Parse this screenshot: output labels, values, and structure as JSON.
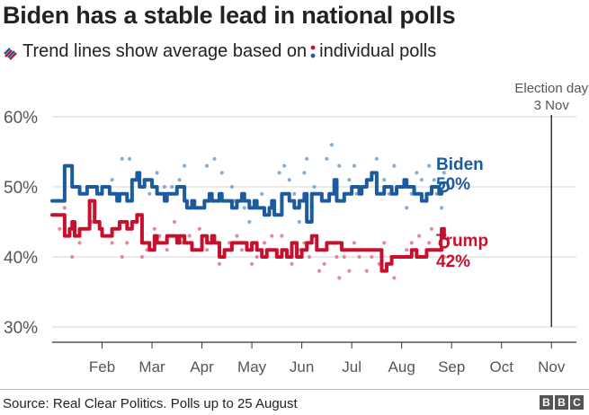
{
  "header": {
    "title": "Biden has a stable lead in national polls",
    "subtitle_part1": "Trend lines show average based on",
    "subtitle_part2": "individual polls"
  },
  "footer": {
    "source": "Source: Real Clear Politics. Polls up to 25 August",
    "logo": [
      "B",
      "B",
      "C"
    ]
  },
  "colors": {
    "biden": "#1c5b9e",
    "biden_dots": "#7aa4cf",
    "trump": "#c8102e",
    "trump_dots": "#e17e8c",
    "grid": "#d6d6d6",
    "axis": "#333333",
    "text": "#222222"
  },
  "icons": [
    "trend-line-legend-icon",
    "poll-dot-legend-icon"
  ],
  "chart_data": {
    "type": "line",
    "title": "Biden has a stable lead in national polls",
    "subtitle": "Trend lines show average based on individual polls",
    "xlabel": "",
    "ylabel": "",
    "x_range_months": [
      0.5,
      11.0
    ],
    "ylim": [
      28,
      62
    ],
    "y_ticks": [
      30,
      40,
      50,
      60
    ],
    "y_tick_labels": [
      "30%",
      "40%",
      "50%",
      "60%"
    ],
    "x_ticks": [
      1.5,
      2.5,
      3.5,
      4.5,
      5.5,
      6.5,
      7.5,
      8.5,
      9.5,
      10.5
    ],
    "x_tick_labels": [
      "Feb",
      "Mar",
      "Apr",
      "May",
      "Jun",
      "Jul",
      "Aug",
      "Sep",
      "Oct",
      "Nov"
    ],
    "grid": true,
    "annotation": {
      "line1": "Election day",
      "line2": "3 Nov",
      "x": 10.5
    },
    "series": [
      {
        "name": "Biden",
        "label": "Biden",
        "end_value_label": "50%",
        "x": [
          0.5,
          0.72,
          0.75,
          0.85,
          0.9,
          1.0,
          1.05,
          1.15,
          1.2,
          1.35,
          1.4,
          1.5,
          1.55,
          1.65,
          1.7,
          1.8,
          1.85,
          1.95,
          2.0,
          2.1,
          2.2,
          2.25,
          2.35,
          2.5,
          2.55,
          2.6,
          2.65,
          2.75,
          2.8,
          2.9,
          3.0,
          3.05,
          3.15,
          3.2,
          3.3,
          3.35,
          3.5,
          3.55,
          3.65,
          3.7,
          3.85,
          3.9,
          4.0,
          4.1,
          4.2,
          4.3,
          4.35,
          4.45,
          4.55,
          4.6,
          4.7,
          4.75,
          4.85,
          4.9,
          4.95,
          5.0,
          5.1,
          5.15,
          5.25,
          5.35,
          5.45,
          5.55,
          5.6,
          5.7,
          5.8,
          5.9,
          6.0,
          6.05,
          6.15,
          6.2,
          6.35,
          6.45,
          6.5,
          6.65,
          6.7,
          6.8,
          6.9,
          7.0,
          7.05,
          7.15,
          7.2,
          7.3,
          7.4,
          7.5,
          7.55,
          7.6,
          7.7,
          7.75,
          7.85,
          7.9,
          8.0,
          8.1,
          8.25,
          8.3,
          8.35
        ],
        "values": [
          48,
          48,
          53,
          53,
          50,
          50,
          49,
          49,
          50,
          50,
          49,
          50,
          50,
          49,
          49,
          48,
          49,
          49,
          48,
          51,
          52,
          50,
          51,
          50,
          50,
          49,
          49,
          48,
          49,
          49,
          50,
          50,
          48,
          47,
          48,
          47,
          47,
          48,
          49,
          48,
          49,
          48,
          48,
          47,
          48,
          49,
          48,
          47,
          48,
          47,
          47,
          46,
          47,
          48,
          46,
          46,
          49,
          49,
          48,
          47,
          48,
          49,
          45,
          49,
          49,
          48,
          48,
          49,
          51,
          48,
          49,
          49,
          50,
          49,
          50,
          51,
          52,
          49,
          49,
          50,
          50,
          49,
          50,
          50,
          51,
          50,
          50,
          49,
          49,
          48,
          49,
          50,
          49,
          50,
          50
        ]
      },
      {
        "name": "Trump",
        "label": "Trump",
        "end_value_label": "42%",
        "x": [
          0.5,
          0.7,
          0.75,
          0.85,
          0.9,
          0.95,
          1.05,
          1.15,
          1.25,
          1.35,
          1.45,
          1.5,
          1.6,
          1.7,
          1.8,
          1.85,
          1.95,
          2.0,
          2.1,
          2.2,
          2.3,
          2.35,
          2.45,
          2.55,
          2.6,
          2.7,
          2.8,
          2.9,
          3.0,
          3.05,
          3.15,
          3.3,
          3.4,
          3.5,
          3.6,
          3.7,
          3.75,
          3.85,
          3.95,
          4.0,
          4.1,
          4.2,
          4.3,
          4.4,
          4.5,
          4.6,
          4.7,
          4.8,
          4.9,
          5.0,
          5.1,
          5.2,
          5.3,
          5.4,
          5.5,
          5.6,
          5.7,
          5.8,
          5.9,
          6.0,
          6.05,
          6.1,
          6.2,
          6.3,
          6.4,
          6.5,
          6.6,
          6.7,
          6.8,
          6.9,
          7.0,
          7.1,
          7.2,
          7.3,
          7.4,
          7.5,
          7.6,
          7.7,
          7.75,
          7.8,
          7.9,
          8.0,
          8.1,
          8.2,
          8.3,
          8.35
        ],
        "values": [
          46,
          46,
          43,
          44,
          45,
          43,
          44,
          44,
          48,
          45,
          44,
          43,
          43,
          44,
          44,
          45,
          45,
          44,
          45,
          46,
          42,
          42,
          41,
          43,
          42,
          42,
          43,
          43,
          42,
          43,
          42,
          41,
          41,
          43,
          42,
          43,
          42,
          40,
          41,
          41,
          42,
          42,
          42,
          41,
          42,
          41,
          40,
          41,
          41,
          40,
          41,
          40,
          42,
          40,
          41,
          42,
          43,
          41,
          41,
          42,
          42,
          42,
          42,
          41,
          41,
          41,
          41,
          41,
          41,
          41,
          41,
          38,
          39,
          40,
          40,
          40,
          40,
          41,
          41,
          40,
          40,
          41,
          41,
          41,
          44,
          42
        ]
      }
    ],
    "poll_dots": [
      {
        "name": "Biden polls",
        "points": [
          [
            1.25,
            48
          ],
          [
            1.5,
            49
          ],
          [
            1.7,
            51
          ],
          [
            1.9,
            54
          ],
          [
            2.05,
            54
          ],
          [
            2.1,
            49
          ],
          [
            2.25,
            52
          ],
          [
            2.35,
            51
          ],
          [
            2.45,
            49
          ],
          [
            2.6,
            52
          ],
          [
            2.75,
            50
          ],
          [
            2.9,
            50
          ],
          [
            3.05,
            51
          ],
          [
            3.15,
            53
          ],
          [
            3.3,
            48
          ],
          [
            3.45,
            47
          ],
          [
            3.6,
            53
          ],
          [
            3.75,
            54
          ],
          [
            3.9,
            52
          ],
          [
            4.1,
            50
          ],
          [
            4.15,
            48
          ],
          [
            4.35,
            47
          ],
          [
            4.45,
            45
          ],
          [
            4.55,
            48
          ],
          [
            4.7,
            49
          ],
          [
            4.9,
            47
          ],
          [
            5.0,
            46
          ],
          [
            5.05,
            52
          ],
          [
            5.15,
            53
          ],
          [
            5.25,
            51
          ],
          [
            5.35,
            49
          ],
          [
            5.45,
            45
          ],
          [
            5.55,
            52
          ],
          [
            5.6,
            54
          ],
          [
            5.7,
            47
          ],
          [
            5.75,
            50
          ],
          [
            5.9,
            49
          ],
          [
            6.0,
            54
          ],
          [
            6.1,
            56
          ],
          [
            6.2,
            51
          ],
          [
            6.25,
            53
          ],
          [
            6.35,
            48
          ],
          [
            6.45,
            51
          ],
          [
            6.55,
            53
          ],
          [
            6.6,
            49
          ],
          [
            6.75,
            50
          ],
          [
            6.9,
            52
          ],
          [
            7.0,
            54
          ],
          [
            7.15,
            51
          ],
          [
            7.25,
            49
          ],
          [
            7.35,
            53
          ],
          [
            7.45,
            50
          ],
          [
            7.6,
            47
          ],
          [
            7.7,
            49
          ],
          [
            7.8,
            52
          ],
          [
            7.9,
            51
          ],
          [
            8.0,
            48
          ],
          [
            8.05,
            53
          ],
          [
            8.15,
            51
          ],
          [
            8.2,
            49
          ],
          [
            8.3,
            47
          ],
          [
            8.35,
            52
          ]
        ]
      },
      {
        "name": "Trump polls",
        "points": [
          [
            0.55,
            46
          ],
          [
            0.65,
            44
          ],
          [
            0.75,
            47
          ],
          [
            0.9,
            40
          ],
          [
            1.05,
            42
          ],
          [
            1.3,
            45
          ],
          [
            1.5,
            44
          ],
          [
            1.7,
            42
          ],
          [
            1.9,
            40
          ],
          [
            2.0,
            42
          ],
          [
            2.05,
            44
          ],
          [
            2.2,
            46
          ],
          [
            2.3,
            40
          ],
          [
            2.4,
            41
          ],
          [
            2.55,
            44
          ],
          [
            2.65,
            43
          ],
          [
            2.8,
            41
          ],
          [
            2.95,
            45
          ],
          [
            3.1,
            42
          ],
          [
            3.25,
            43
          ],
          [
            3.45,
            44
          ],
          [
            3.6,
            41
          ],
          [
            3.7,
            43
          ],
          [
            3.85,
            39
          ],
          [
            3.95,
            40
          ],
          [
            4.05,
            42
          ],
          [
            4.2,
            43
          ],
          [
            4.3,
            41
          ],
          [
            4.5,
            39
          ],
          [
            4.6,
            40
          ],
          [
            4.75,
            42
          ],
          [
            4.9,
            43
          ],
          [
            5.1,
            43
          ],
          [
            5.2,
            40
          ],
          [
            5.3,
            39
          ],
          [
            5.45,
            41
          ],
          [
            5.55,
            42
          ],
          [
            5.65,
            40
          ],
          [
            5.85,
            38
          ],
          [
            5.95,
            39
          ],
          [
            6.1,
            42
          ],
          [
            6.2,
            40
          ],
          [
            6.25,
            37
          ],
          [
            6.35,
            40
          ],
          [
            6.45,
            38
          ],
          [
            6.55,
            42
          ],
          [
            6.65,
            40
          ],
          [
            6.8,
            38
          ],
          [
            6.9,
            40
          ],
          [
            7.05,
            39
          ],
          [
            7.15,
            42
          ],
          [
            7.3,
            40
          ],
          [
            7.35,
            37
          ],
          [
            7.5,
            40
          ],
          [
            7.6,
            41
          ],
          [
            7.7,
            42
          ],
          [
            7.85,
            43
          ],
          [
            7.95,
            40
          ],
          [
            8.05,
            42
          ],
          [
            8.1,
            44
          ],
          [
            8.25,
            41
          ],
          [
            8.35,
            40
          ]
        ]
      }
    ]
  }
}
